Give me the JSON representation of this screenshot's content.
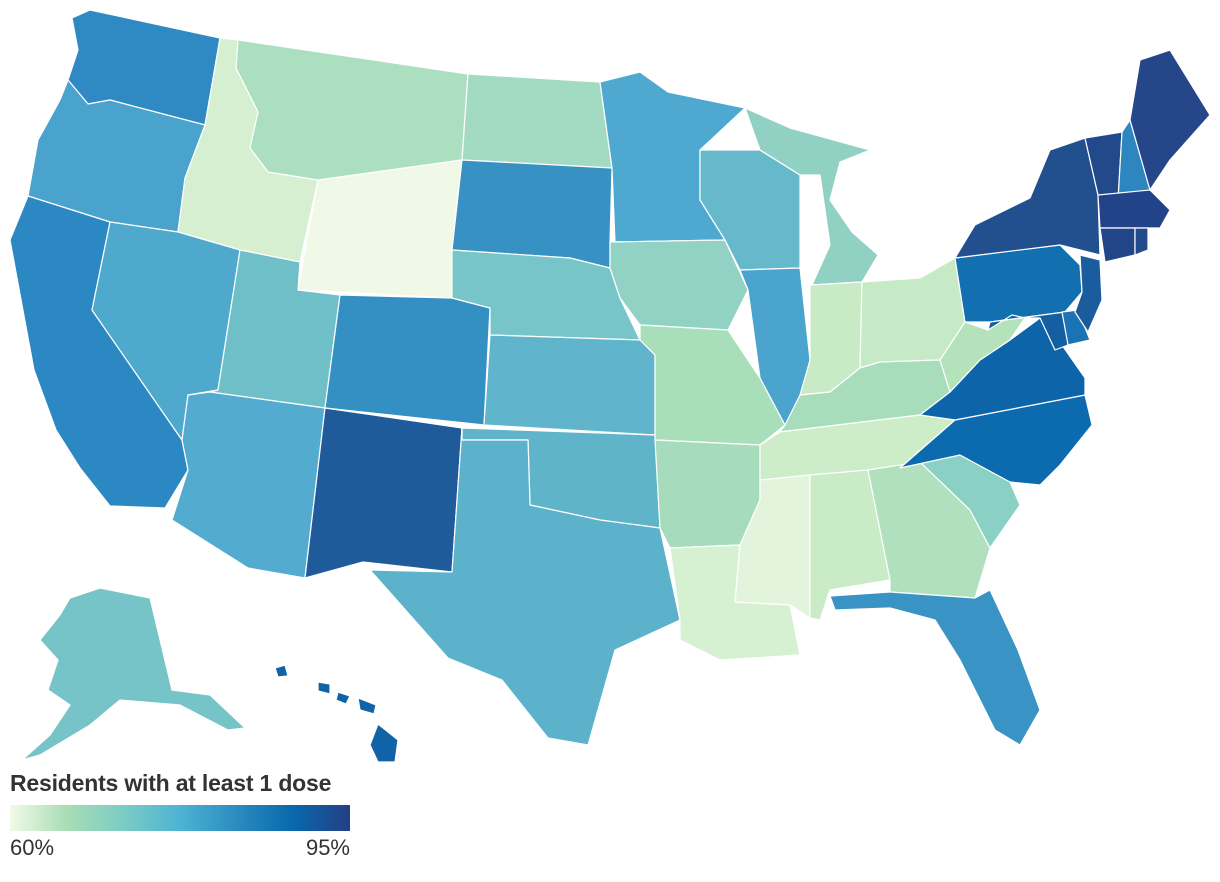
{
  "legend": {
    "title": "Residents with at least 1 dose",
    "min_label": "60%",
    "max_label": "95%",
    "colors": [
      "#f2fae9",
      "#a8ddb5",
      "#7bccc4",
      "#4eb3d3",
      "#2b8cbe",
      "#0868ac",
      "#253f84"
    ]
  },
  "states": [
    {
      "name": "Washington",
      "color": "#2f8ac4"
    },
    {
      "name": "Oregon",
      "color": "#4aa3cc"
    },
    {
      "name": "California",
      "color": "#2c88c2"
    },
    {
      "name": "Idaho",
      "color": "#d5efd0"
    },
    {
      "name": "Nevada",
      "color": "#4ea9cd"
    },
    {
      "name": "Utah",
      "color": "#6fbfc8"
    },
    {
      "name": "Arizona",
      "color": "#53abcf"
    },
    {
      "name": "Montana",
      "color": "#acdfbf"
    },
    {
      "name": "Wyoming",
      "color": "#f0f9e8"
    },
    {
      "name": "Colorado",
      "color": "#348fc2"
    },
    {
      "name": "New Mexico",
      "color": "#1f5a9a"
    },
    {
      "name": "North Dakota",
      "color": "#a3dac2"
    },
    {
      "name": "South Dakota",
      "color": "#3891c3"
    },
    {
      "name": "Nebraska",
      "color": "#77c5c9"
    },
    {
      "name": "Kansas",
      "color": "#60b4cb"
    },
    {
      "name": "Oklahoma",
      "color": "#60b4c9"
    },
    {
      "name": "Texas",
      "color": "#5cb2cb"
    },
    {
      "name": "Minnesota",
      "color": "#4ea8cf"
    },
    {
      "name": "Iowa",
      "color": "#91d2c4"
    },
    {
      "name": "Missouri",
      "color": "#a9deba"
    },
    {
      "name": "Arkansas",
      "color": "#a6dbbb"
    },
    {
      "name": "Louisiana",
      "color": "#d6f0d2"
    },
    {
      "name": "Wisconsin",
      "color": "#66b8cb"
    },
    {
      "name": "Illinois",
      "color": "#4aa4ce"
    },
    {
      "name": "Michigan",
      "color": "#91d1c4"
    },
    {
      "name": "Indiana",
      "color": "#c8ebc6"
    },
    {
      "name": "Ohio",
      "color": "#c6eac5"
    },
    {
      "name": "Kentucky",
      "color": "#a8ddbb"
    },
    {
      "name": "Tennessee",
      "color": "#cdedc9"
    },
    {
      "name": "Mississippi",
      "color": "#e2f4dc"
    },
    {
      "name": "Alabama",
      "color": "#c9ebc5"
    },
    {
      "name": "Georgia",
      "color": "#b0e0bd"
    },
    {
      "name": "Florida",
      "color": "#3a93c5"
    },
    {
      "name": "South Carolina",
      "color": "#8ad0c4"
    },
    {
      "name": "North Carolina",
      "color": "#0c6aae"
    },
    {
      "name": "Virginia",
      "color": "#0d64a8"
    },
    {
      "name": "West Virginia",
      "color": "#b3e2bb"
    },
    {
      "name": "Pennsylvania",
      "color": "#1270b0"
    },
    {
      "name": "New York",
      "color": "#22508f"
    },
    {
      "name": "Vermont",
      "color": "#224a8a"
    },
    {
      "name": "New Hampshire",
      "color": "#2d86c0"
    },
    {
      "name": "Maine",
      "color": "#25478a"
    },
    {
      "name": "Massachusetts",
      "color": "#224388"
    },
    {
      "name": "Connecticut",
      "color": "#224589"
    },
    {
      "name": "Rhode Island",
      "color": "#234a8a"
    },
    {
      "name": "New Jersey",
      "color": "#1b5c9e"
    },
    {
      "name": "Delaware",
      "color": "#1c73b3"
    },
    {
      "name": "Maryland",
      "color": "#145ea2"
    },
    {
      "name": "Alaska",
      "color": "#77c4c8"
    },
    {
      "name": "Hawaii",
      "color": "#0f63a6"
    }
  ]
}
